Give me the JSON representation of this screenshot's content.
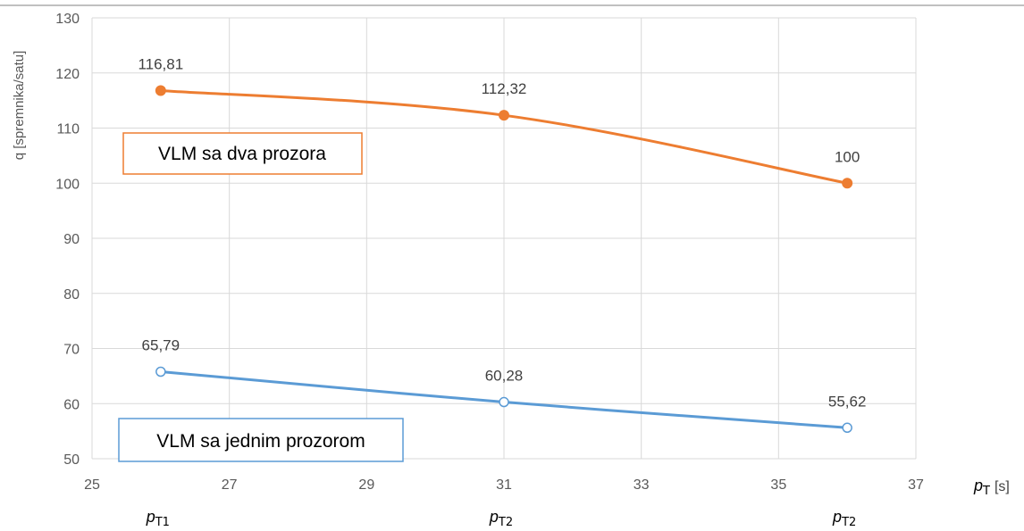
{
  "chart_data": {
    "type": "line",
    "ylabel": "q [spremnika/satu]",
    "xlabel_main": "p",
    "xlabel_sub": "T",
    "xlabel_unit": "[s]",
    "xlim": [
      25,
      37
    ],
    "ylim": [
      50,
      130
    ],
    "xticks": [
      25,
      27,
      29,
      31,
      33,
      35,
      37
    ],
    "yticks": [
      50,
      60,
      70,
      80,
      90,
      100,
      110,
      120,
      130
    ],
    "grid": true,
    "series": [
      {
        "name": "VLM sa dva prozora",
        "color": "#ed7d31",
        "marker": "filled-circle",
        "x": [
          26,
          31,
          36
        ],
        "y": [
          116.81,
          112.32,
          100
        ],
        "labels": [
          "116,81",
          "112,32",
          "100"
        ]
      },
      {
        "name": "VLM sa jednim prozorom",
        "color": "#5b9bd5",
        "marker": "open-circle",
        "x": [
          26,
          31,
          36
        ],
        "y": [
          65.79,
          60.28,
          55.62
        ],
        "labels": [
          "65,79",
          "60,28",
          "55,62"
        ]
      }
    ],
    "point_labels": [
      {
        "x": 26,
        "main": "p",
        "sub": "T1"
      },
      {
        "x": 31,
        "main": "p",
        "sub": "T2"
      },
      {
        "x": 36,
        "main": "p",
        "sub": "T2"
      }
    ]
  }
}
